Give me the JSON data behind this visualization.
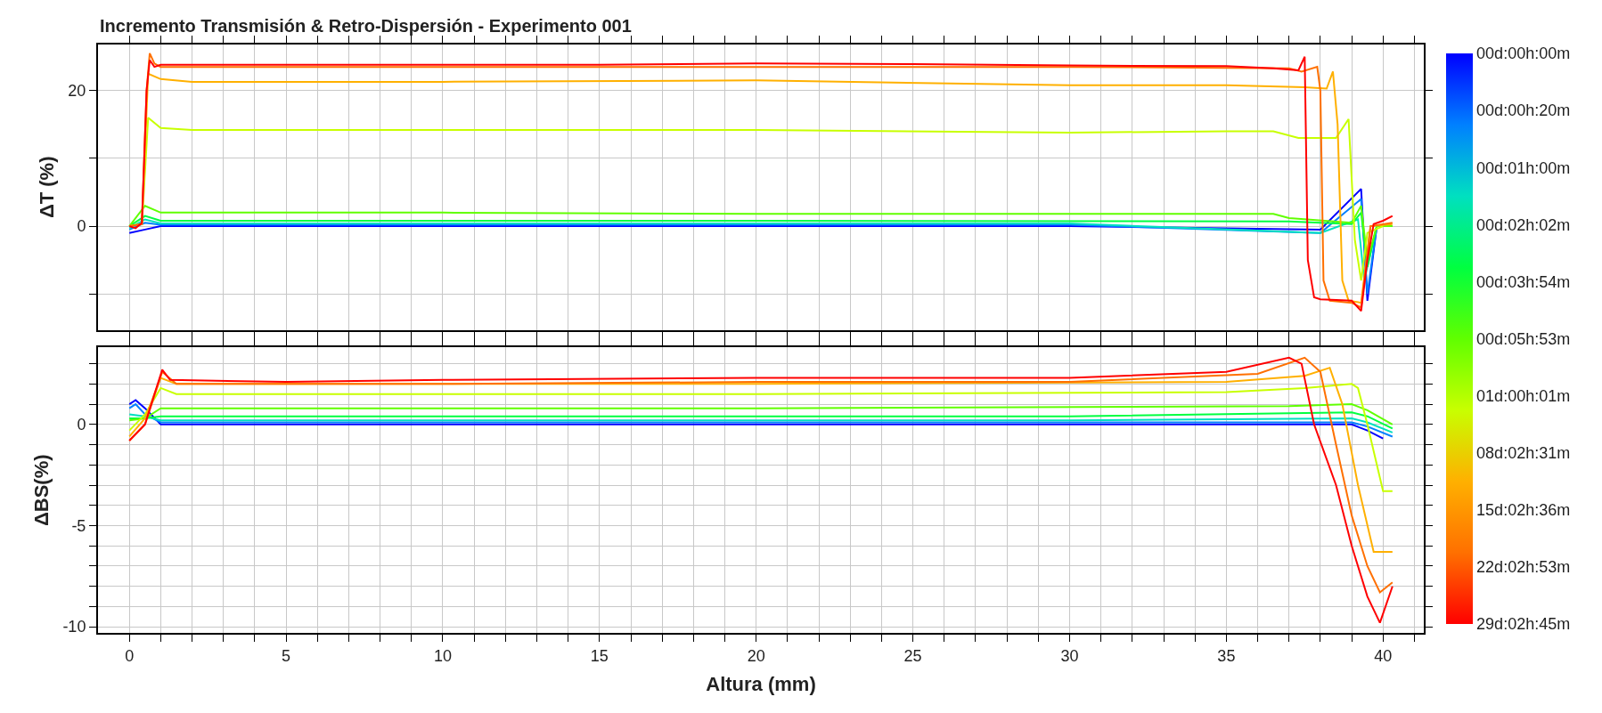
{
  "chart_data": [
    {
      "type": "line",
      "title": "Incremento Transmisión & Retro-Dispersión - Experimento 001",
      "ylabel": "ΔT (%)",
      "xlim": [
        -1,
        41.3
      ],
      "ylim": [
        -15.3,
        26.8
      ],
      "grid": true,
      "tick_labels": "y",
      "xticks": [
        0,
        {
          "value": 1,
          "label": null
        },
        {
          "value": 2,
          "label": null
        },
        {
          "value": 3,
          "label": null
        },
        {
          "value": 4,
          "label": null
        },
        5,
        {
          "value": 6,
          "label": null
        },
        {
          "value": 7,
          "label": null
        },
        {
          "value": 8,
          "label": null
        },
        {
          "value": 9,
          "label": null
        },
        10,
        {
          "value": 11,
          "label": null
        },
        {
          "value": 12,
          "label": null
        },
        {
          "value": 13,
          "label": null
        },
        {
          "value": 14,
          "label": null
        },
        15,
        {
          "value": 16,
          "label": null
        },
        {
          "value": 17,
          "label": null
        },
        {
          "value": 18,
          "label": null
        },
        {
          "value": 19,
          "label": null
        },
        20,
        {
          "value": 21,
          "label": null
        },
        {
          "value": 22,
          "label": null
        },
        {
          "value": 23,
          "label": null
        },
        {
          "value": 24,
          "label": null
        },
        25,
        {
          "value": 26,
          "label": null
        },
        {
          "value": 27,
          "label": null
        },
        {
          "value": 28,
          "label": null
        },
        {
          "value": 29,
          "label": null
        },
        30,
        {
          "value": 31,
          "label": null
        },
        {
          "value": 32,
          "label": null
        },
        {
          "value": 33,
          "label": null
        },
        {
          "value": 34,
          "label": null
        },
        35,
        {
          "value": 36,
          "label": null
        },
        {
          "value": 37,
          "label": null
        },
        {
          "value": 38,
          "label": null
        },
        {
          "value": 39,
          "label": null
        },
        40,
        {
          "value": 41,
          "label": null
        }
      ],
      "yticks": [
        {
          "value": -10,
          "label": null
        },
        0,
        {
          "value": 10,
          "label": null
        },
        20
      ],
      "series": [
        {
          "color": "#0000ff",
          "x": [
            0,
            0.5,
            1,
            10,
            20,
            30,
            38,
            39.3,
            39.5,
            39.8,
            40
          ],
          "values": [
            -1,
            -0.5,
            0,
            0,
            0,
            0,
            -0.5,
            5.5,
            -11,
            0,
            0
          ]
        },
        {
          "color": "#0080ff",
          "x": [
            0,
            0.5,
            1,
            10,
            20,
            30,
            38,
            39.3,
            39.5,
            39.8,
            40.2
          ],
          "values": [
            -0.5,
            0.5,
            0.2,
            0.2,
            0.2,
            0.2,
            -1,
            4,
            -10,
            0,
            0
          ]
        },
        {
          "color": "#00e0c0",
          "x": [
            0,
            0.5,
            1,
            10,
            20,
            30,
            38,
            39.2,
            39.4,
            39.8,
            40.2
          ],
          "values": [
            -0.3,
            1,
            0.4,
            0.4,
            0.4,
            0.4,
            -1,
            1,
            -8,
            0,
            0
          ]
        },
        {
          "color": "#00ff40",
          "x": [
            0,
            0.5,
            1,
            10,
            20,
            37,
            39,
            39.3,
            39.5,
            39.8,
            40.3
          ],
          "values": [
            0,
            1.5,
            0.8,
            0.8,
            0.8,
            0.7,
            0.3,
            2,
            -6,
            0,
            0
          ]
        },
        {
          "color": "#60ff00",
          "x": [
            0,
            0.5,
            1,
            10,
            20,
            36.5,
            37,
            39,
            39.3,
            39.5,
            39.8,
            40.3
          ],
          "values": [
            0,
            3,
            2,
            2,
            1.8,
            1.8,
            1.2,
            0.5,
            3,
            -5,
            0,
            0
          ]
        },
        {
          "color": "#c8ff00",
          "x": [
            0,
            0.4,
            0.6,
            1,
            2,
            20,
            30,
            35,
            36.5,
            37.3,
            38.5,
            38.9,
            39.1,
            39.3,
            39.5,
            40
          ],
          "values": [
            0,
            0.3,
            16,
            14.5,
            14.2,
            14.2,
            13.8,
            14,
            14,
            13,
            13,
            15.8,
            -2,
            -8,
            -1,
            0
          ]
        },
        {
          "color": "#ffb000",
          "x": [
            0,
            0.4,
            0.6,
            1,
            2,
            10,
            20,
            30,
            35,
            37.5,
            38.2,
            38.4,
            38.55,
            38.7,
            38.9,
            39.3,
            39.6,
            40.3
          ],
          "values": [
            0,
            0.3,
            22.5,
            21.7,
            21.3,
            21.3,
            21.5,
            20.8,
            20.8,
            20.5,
            20.3,
            22.8,
            15,
            -8,
            -11,
            -11.3,
            0,
            0.3
          ]
        },
        {
          "color": "#ff7000",
          "x": [
            0,
            0.4,
            0.55,
            0.65,
            0.8,
            1,
            10,
            20,
            30,
            37,
            37.4,
            37.9,
            38,
            38.1,
            38.3,
            39,
            39.3,
            39.6,
            40.3
          ],
          "values": [
            0,
            0.3,
            20,
            25.5,
            24,
            23.5,
            23.5,
            23.5,
            23.5,
            23.3,
            22.8,
            23.5,
            20,
            -8,
            -11,
            -11.3,
            -12,
            0,
            0.5
          ]
        },
        {
          "color": "#ff0000",
          "x": [
            0,
            0.2,
            0.4,
            0.55,
            0.65,
            0.8,
            1,
            5,
            10,
            15,
            20,
            25,
            30,
            35,
            36.5,
            37.3,
            37.5,
            37.6,
            37.8,
            38,
            39,
            39.3,
            39.5,
            39.7,
            40,
            40.3
          ],
          "values": [
            0,
            -0.3,
            0.5,
            20,
            24.5,
            23.5,
            23.8,
            23.8,
            23.8,
            23.8,
            24,
            23.9,
            23.7,
            23.6,
            23.3,
            23,
            25,
            -5,
            -10.5,
            -10.8,
            -11,
            -12.5,
            -5,
            0.3,
            0.8,
            1.5
          ]
        }
      ]
    },
    {
      "type": "line",
      "ylabel": "ΔBS(%)",
      "xlabel": "Altura (mm)",
      "xlim": [
        -1,
        41.3
      ],
      "ylim": [
        -10.3,
        3.8
      ],
      "grid": true,
      "xticks": [
        0,
        {
          "value": 1,
          "label": null
        },
        {
          "value": 2,
          "label": null
        },
        {
          "value": 3,
          "label": null
        },
        {
          "value": 4,
          "label": null
        },
        5,
        {
          "value": 6,
          "label": null
        },
        {
          "value": 7,
          "label": null
        },
        {
          "value": 8,
          "label": null
        },
        {
          "value": 9,
          "label": null
        },
        10,
        {
          "value": 11,
          "label": null
        },
        {
          "value": 12,
          "label": null
        },
        {
          "value": 13,
          "label": null
        },
        {
          "value": 14,
          "label": null
        },
        15,
        {
          "value": 16,
          "label": null
        },
        {
          "value": 17,
          "label": null
        },
        {
          "value": 18,
          "label": null
        },
        {
          "value": 19,
          "label": null
        },
        20,
        {
          "value": 21,
          "label": null
        },
        {
          "value": 22,
          "label": null
        },
        {
          "value": 23,
          "label": null
        },
        {
          "value": 24,
          "label": null
        },
        25,
        {
          "value": 26,
          "label": null
        },
        {
          "value": 27,
          "label": null
        },
        {
          "value": 28,
          "label": null
        },
        {
          "value": 29,
          "label": null
        },
        30,
        {
          "value": 31,
          "label": null
        },
        {
          "value": 32,
          "label": null
        },
        {
          "value": 33,
          "label": null
        },
        {
          "value": 34,
          "label": null
        },
        35,
        {
          "value": 36,
          "label": null
        },
        {
          "value": 37,
          "label": null
        },
        {
          "value": 38,
          "label": null
        },
        {
          "value": 39,
          "label": null
        },
        40,
        {
          "value": 41,
          "label": null
        }
      ],
      "yticks": [
        -10,
        {
          "value": -9,
          "label": null
        },
        {
          "value": -8,
          "label": null
        },
        {
          "value": -7,
          "label": null
        },
        {
          "value": -6,
          "label": null
        },
        -5,
        {
          "value": -4,
          "label": null
        },
        {
          "value": -3,
          "label": null
        },
        {
          "value": -2,
          "label": null
        },
        {
          "value": -1,
          "label": null
        },
        0,
        {
          "value": 1,
          "label": null
        },
        {
          "value": 2,
          "label": null
        },
        {
          "value": 3,
          "label": null
        }
      ],
      "clim": [
        10,
        0
      ],
      "cticks": [
        {
          "value": 0,
          "label": "00d:00h:00m"
        },
        {
          "value": 1,
          "label": "00d:00h:20m"
        },
        {
          "value": 2,
          "label": "00d:01h:00m"
        },
        {
          "value": 3,
          "label": "00d:02h:02m"
        },
        {
          "value": 4,
          "label": "00d:03h:54m"
        },
        {
          "value": 5,
          "label": "00d:05h:53m"
        },
        {
          "value": 6,
          "label": "01d:00h:01m"
        },
        {
          "value": 7,
          "label": "08d:02h:31m"
        },
        {
          "value": 8,
          "label": "15d:02h:36m"
        },
        {
          "value": 9,
          "label": "22d:02h:53m"
        },
        {
          "value": 10,
          "label": "29d:02h:45m"
        }
      ],
      "series": [
        {
          "color": "#0000ff",
          "x": [
            0,
            0.2,
            0.5,
            1,
            10,
            20,
            30,
            39,
            39.5,
            40
          ],
          "values": [
            1,
            1.2,
            0.8,
            0,
            0,
            0,
            0,
            0,
            -0.3,
            -0.7
          ]
        },
        {
          "color": "#0080ff",
          "x": [
            0,
            0.2,
            0.5,
            1,
            10,
            20,
            30,
            39,
            39.5,
            40.3
          ],
          "values": [
            0.8,
            1,
            0.5,
            0.1,
            0.1,
            0.1,
            0.1,
            0.1,
            -0.1,
            -0.6
          ]
        },
        {
          "color": "#00e0c0",
          "x": [
            0,
            0.5,
            1,
            10,
            20,
            30,
            39,
            39.5,
            40.3
          ],
          "values": [
            0.5,
            0.4,
            0.2,
            0.2,
            0.2,
            0.2,
            0.3,
            0.1,
            -0.4
          ]
        },
        {
          "color": "#00ff40",
          "x": [
            0,
            0.5,
            1,
            10,
            20,
            30,
            39,
            39.5,
            40.3
          ],
          "values": [
            0.3,
            0.3,
            0.4,
            0.4,
            0.4,
            0.4,
            0.6,
            0.4,
            -0.2
          ]
        },
        {
          "color": "#60ff00",
          "x": [
            0,
            0.5,
            1,
            10,
            20,
            37,
            39,
            39.5,
            40.3
          ],
          "values": [
            0.2,
            0.3,
            0.8,
            0.8,
            0.8,
            0.9,
            1,
            0.7,
            0
          ]
        },
        {
          "color": "#c8ff00",
          "x": [
            0,
            0.5,
            1,
            1.5,
            10,
            20,
            35,
            37.5,
            39,
            39.2,
            39.5,
            40,
            40.3
          ],
          "values": [
            -0.3,
            0.5,
            1.8,
            1.5,
            1.5,
            1.5,
            1.6,
            1.8,
            2,
            1.8,
            0,
            -3.3,
            -3.3
          ]
        },
        {
          "color": "#ffb000",
          "x": [
            0,
            0.5,
            1,
            1.5,
            10,
            20,
            35,
            37.5,
            38.3,
            38.7,
            39.2,
            39.7,
            40.3
          ],
          "values": [
            -0.6,
            0.3,
            2.3,
            2,
            2,
            2,
            2.1,
            2.4,
            2.8,
            1,
            -3,
            -6.3,
            -6.3
          ]
        },
        {
          "color": "#ff7000",
          "x": [
            0,
            0.5,
            1.05,
            1.5,
            10,
            20,
            30,
            36,
            37.5,
            38,
            38.5,
            39,
            39.5,
            39.9,
            40.3
          ],
          "values": [
            -0.8,
            0,
            2.6,
            2,
            2,
            2.1,
            2.1,
            2.5,
            3.3,
            2.6,
            -1,
            -4.5,
            -7,
            -8.3,
            -7.8
          ]
        },
        {
          "color": "#ff0000",
          "x": [
            0,
            0.5,
            0.8,
            1.05,
            1.3,
            5,
            10,
            20,
            30,
            35,
            37,
            37.4,
            37.8,
            38.5,
            39,
            39.5,
            39.9,
            40.3
          ],
          "values": [
            -0.8,
            0,
            1.5,
            2.7,
            2.2,
            2.1,
            2.2,
            2.3,
            2.3,
            2.6,
            3.3,
            3,
            0,
            -3,
            -6,
            -8.5,
            -9.8,
            -8
          ]
        }
      ]
    }
  ]
}
